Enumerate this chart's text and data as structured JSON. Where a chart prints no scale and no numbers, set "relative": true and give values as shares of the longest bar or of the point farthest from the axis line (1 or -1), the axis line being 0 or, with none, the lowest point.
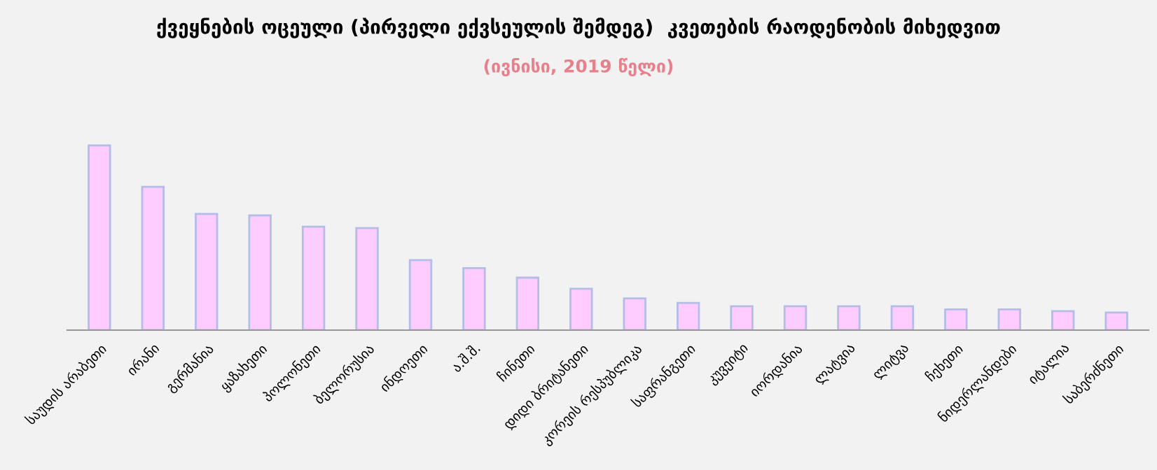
{
  "chart_data": {
    "type": "bar",
    "title": "ქვეყნების ოცეული (პირველი ექვსეულის შემდეგ)  კვეთების რაოდენობის მიხედვით",
    "subtitle": "(ივნისი, 2019 წელი)",
    "relative": true,
    "color": "#ffccff",
    "categories": [
      "საუდის არაბეთი",
      "ირანი",
      "გერმანია",
      "ყაზახეთი",
      "პოლონეთი",
      "ბელორუსია",
      "ინდოეთი",
      "ა.შ.შ.",
      "ჩინეთი",
      "დიდი ბრიტანეთი",
      "კორეის რესპუბლიკა",
      "საფრანგეთი",
      "კუვეიტი",
      "იორდანია",
      "ლატვია",
      "ლიტვა",
      "ჩეხეთი",
      "ნიდერლანდები",
      "იტალია",
      "საბერძნეთი"
    ],
    "values": [
      1,
      0.776,
      0.629,
      0.621,
      0.56,
      0.552,
      0.379,
      0.336,
      0.284,
      0.224,
      0.172,
      0.147,
      0.129,
      0.129,
      0.129,
      0.129,
      0.112,
      0.112,
      0.103,
      0.095
    ],
    "grid": false,
    "legend": false
  }
}
